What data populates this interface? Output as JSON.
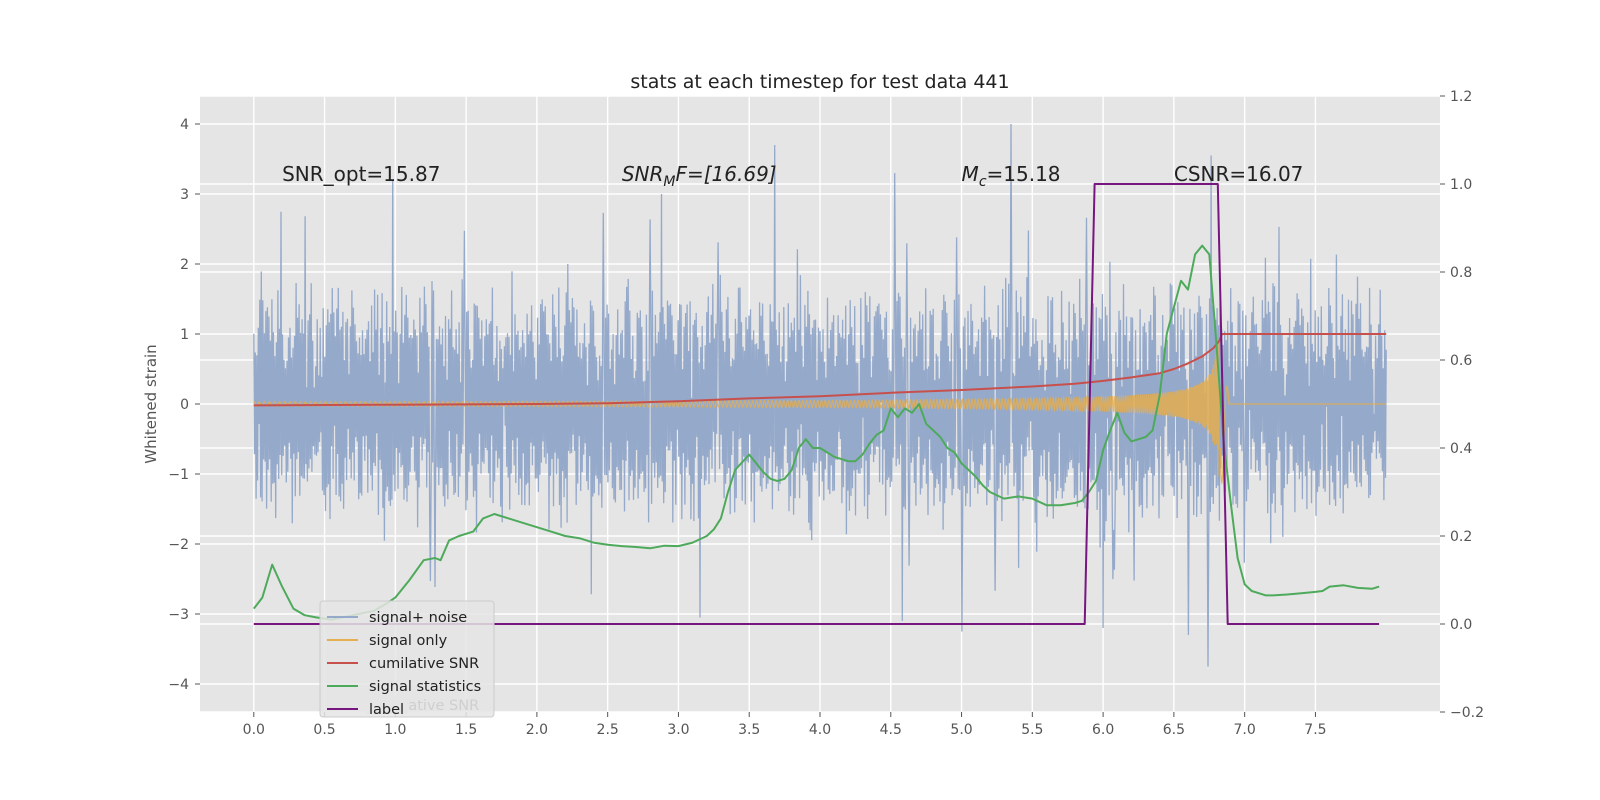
{
  "chart_data": {
    "type": "line",
    "title": "stats at each timestep for test data 441",
    "xlabel": "",
    "ylabel": "Whitened strain",
    "xlim": [
      -0.38,
      8.38
    ],
    "ylim": [
      -4.4,
      4.4
    ],
    "y2lim": [
      -0.2,
      1.2
    ],
    "xticks": [
      0.0,
      0.5,
      1.0,
      1.5,
      2.0,
      2.5,
      3.0,
      3.5,
      4.0,
      4.5,
      5.0,
      5.5,
      6.0,
      6.5,
      7.0,
      7.5
    ],
    "xtick_labels": [
      "0.0",
      "0.5",
      "1.0",
      "1.5",
      "2.0",
      "2.5",
      "3.0",
      "3.5",
      "4.0",
      "4.5",
      "5.0",
      "5.5",
      "6.0",
      "6.5",
      "7.0",
      "7.5"
    ],
    "yticks": [
      -4,
      -3,
      -2,
      -1,
      0,
      1,
      2,
      3,
      4
    ],
    "ytick_labels": [
      "−4",
      "−3",
      "−2",
      "−1",
      "0",
      "1",
      "2",
      "3",
      "4"
    ],
    "y2ticks": [
      -0.2,
      0.0,
      0.2,
      0.4,
      0.6,
      0.8,
      1.0,
      1.2
    ],
    "y2tick_labels": [
      "−0.2",
      "0.0",
      "0.2",
      "0.4",
      "0.6",
      "0.8",
      "1.0",
      "1.2"
    ],
    "grid": true,
    "legend_position": "lower-left",
    "legend": [
      "signal+ noise",
      "signal only",
      "cumilative SNR",
      "signal statistics",
      "label"
    ],
    "legend_ghost_text": "cumilative SNR",
    "annotations": [
      {
        "x": 0.2,
        "y": 3.3,
        "text": "SNR_opt=15.87"
      },
      {
        "x": 2.6,
        "y": 3.3,
        "text": "SNR",
        "sub": "M",
        "suffix": "F=[16.69]",
        "italic": true
      },
      {
        "x": 5.0,
        "y": 3.3,
        "text": "M",
        "sub": "c",
        "suffix": "=15.18",
        "italic": true
      },
      {
        "x": 6.5,
        "y": 3.3,
        "text": "CSNR=16.07"
      }
    ],
    "series": [
      {
        "name": "signal+ noise",
        "axis": "left",
        "color": "#95a9ca",
        "kind": "noise",
        "x_range": [
          0.0,
          8.0
        ],
        "envelope": 1.4,
        "noise_sigma": 0.8,
        "peaks": [
          {
            "x": 0.98,
            "y": 3.2
          },
          {
            "x": 5.35,
            "y": 4.0
          },
          {
            "x": 6.76,
            "y": 3.55
          },
          {
            "x": 3.68,
            "y": 3.7
          },
          {
            "x": 4.53,
            "y": 3.3
          },
          {
            "x": 2.88,
            "y": 3.0
          },
          {
            "x": 6.6,
            "y": -3.3
          },
          {
            "x": 6.74,
            "y": -3.75
          },
          {
            "x": 5.0,
            "y": -3.25
          },
          {
            "x": 3.15,
            "y": -3.05
          },
          {
            "x": 6.0,
            "y": -3.2
          },
          {
            "x": 4.58,
            "y": -3.1
          }
        ]
      },
      {
        "name": "signal only",
        "axis": "left",
        "color": "#e5ae4f",
        "kind": "chirp",
        "t_merge": 6.83,
        "amp_peak": 1.35,
        "x_range": [
          0.0,
          8.0
        ]
      },
      {
        "name": "cumilative SNR",
        "axis": "left",
        "color": "#c8504c",
        "x": [
          0.0,
          1.0,
          2.0,
          2.5,
          3.0,
          3.5,
          4.0,
          4.5,
          5.0,
          5.5,
          5.8,
          6.0,
          6.2,
          6.4,
          6.5,
          6.6,
          6.7,
          6.78,
          6.82,
          6.84,
          7.0,
          7.5,
          8.0
        ],
        "values": [
          -0.02,
          -0.01,
          0.0,
          0.01,
          0.04,
          0.08,
          0.11,
          0.16,
          0.2,
          0.25,
          0.29,
          0.33,
          0.38,
          0.44,
          0.5,
          0.58,
          0.68,
          0.8,
          0.9,
          1.0,
          1.0,
          1.0,
          1.0
        ]
      },
      {
        "name": "signal statistics",
        "axis": "right",
        "color": "#4eaa5b",
        "x": [
          0.0,
          0.06,
          0.13,
          0.2,
          0.28,
          0.36,
          0.44,
          0.55,
          0.7,
          0.85,
          0.93,
          1.0,
          1.1,
          1.2,
          1.28,
          1.32,
          1.38,
          1.45,
          1.55,
          1.62,
          1.7,
          1.8,
          1.9,
          2.0,
          2.1,
          2.2,
          2.3,
          2.4,
          2.5,
          2.6,
          2.7,
          2.8,
          2.9,
          3.0,
          3.1,
          3.2,
          3.25,
          3.3,
          3.35,
          3.4,
          3.5,
          3.55,
          3.6,
          3.65,
          3.7,
          3.75,
          3.8,
          3.85,
          3.9,
          3.95,
          4.0,
          4.05,
          4.1,
          4.2,
          4.25,
          4.3,
          4.35,
          4.4,
          4.45,
          4.5,
          4.55,
          4.6,
          4.65,
          4.7,
          4.75,
          4.8,
          4.85,
          4.9,
          4.95,
          5.0,
          5.05,
          5.1,
          5.15,
          5.2,
          5.3,
          5.4,
          5.5,
          5.6,
          5.7,
          5.8,
          5.85,
          5.9,
          5.95,
          6.0,
          6.05,
          6.1,
          6.15,
          6.2,
          6.25,
          6.3,
          6.35,
          6.4,
          6.45,
          6.5,
          6.55,
          6.6,
          6.65,
          6.7,
          6.75,
          6.8,
          6.85,
          6.9,
          6.95,
          7.0,
          7.05,
          7.1,
          7.15,
          7.2,
          7.3,
          7.4,
          7.5,
          7.55,
          7.6,
          7.7,
          7.8,
          7.9,
          7.95
        ],
        "values": [
          0.035,
          0.06,
          0.135,
          0.085,
          0.035,
          0.02,
          0.015,
          0.01,
          0.02,
          0.03,
          0.045,
          0.06,
          0.1,
          0.145,
          0.15,
          0.145,
          0.19,
          0.2,
          0.21,
          0.24,
          0.25,
          0.24,
          0.23,
          0.22,
          0.21,
          0.2,
          0.195,
          0.185,
          0.18,
          0.177,
          0.175,
          0.172,
          0.178,
          0.177,
          0.185,
          0.2,
          0.215,
          0.24,
          0.3,
          0.35,
          0.385,
          0.365,
          0.345,
          0.33,
          0.325,
          0.33,
          0.35,
          0.4,
          0.42,
          0.4,
          0.4,
          0.39,
          0.38,
          0.37,
          0.37,
          0.385,
          0.41,
          0.43,
          0.44,
          0.49,
          0.47,
          0.49,
          0.48,
          0.5,
          0.455,
          0.44,
          0.425,
          0.4,
          0.39,
          0.365,
          0.35,
          0.335,
          0.315,
          0.3,
          0.285,
          0.29,
          0.285,
          0.27,
          0.27,
          0.275,
          0.28,
          0.3,
          0.325,
          0.395,
          0.44,
          0.48,
          0.435,
          0.415,
          0.42,
          0.425,
          0.44,
          0.52,
          0.66,
          0.72,
          0.78,
          0.76,
          0.84,
          0.86,
          0.84,
          0.64,
          0.42,
          0.28,
          0.15,
          0.09,
          0.075,
          0.07,
          0.065,
          0.065,
          0.067,
          0.07,
          0.073,
          0.075,
          0.085,
          0.088,
          0.082,
          0.08,
          0.085
        ]
      },
      {
        "name": "label",
        "axis": "right",
        "color": "#77167f",
        "x": [
          0.0,
          5.87,
          5.94,
          6.81,
          6.88,
          7.95
        ],
        "values": [
          0.0,
          0.0,
          1.0,
          1.0,
          0.0,
          0.0
        ]
      }
    ]
  }
}
